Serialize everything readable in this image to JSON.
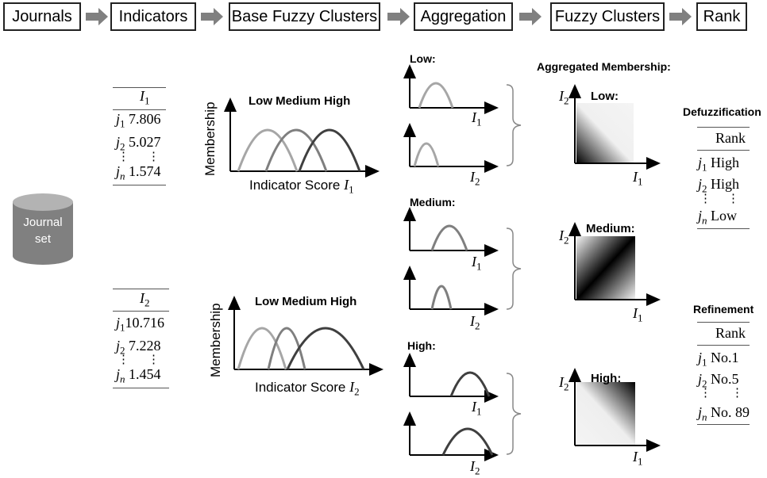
{
  "pipeline": {
    "steps": [
      "Journals",
      "Indicators",
      "Base Fuzzy Clusters",
      "Aggregation",
      "Fuzzy Clusters",
      "Rank"
    ]
  },
  "journal_set": {
    "label": "Journal\nset"
  },
  "indicator_tables": [
    {
      "header": "I",
      "header_sub": "1",
      "rows": [
        {
          "j": "j",
          "sub": "1",
          "val": "7.806"
        },
        {
          "j": "j",
          "sub": "2",
          "val": "5.027"
        },
        {
          "j": "j",
          "sub": "n",
          "val": "1.574"
        }
      ]
    },
    {
      "header": "I",
      "header_sub": "2",
      "rows": [
        {
          "j": "j",
          "sub": "1",
          "val": "10.716"
        },
        {
          "j": "j",
          "sub": "2",
          "val": "7.228"
        },
        {
          "j": "j",
          "sub": "n",
          "val": "1.454"
        }
      ]
    }
  ],
  "base_clusters": [
    {
      "ylabel": "Membership",
      "legend": "Low Medium High",
      "xlabel": "Indicator Score",
      "xvar": "I",
      "xsub": "1"
    },
    {
      "ylabel": "Membership",
      "legend": "Low Medium High",
      "xlabel": "Indicator Score",
      "xvar": "I",
      "xsub": "2"
    }
  ],
  "aggregation": {
    "groups": [
      {
        "label": "Low:"
      },
      {
        "label": "Medium:"
      },
      {
        "label": "High:"
      }
    ],
    "axis1": {
      "var": "I",
      "sub": "1"
    },
    "axis2": {
      "var": "I",
      "sub": "2"
    }
  },
  "fuzzy_clusters": {
    "title": "Aggregated Membership:",
    "maps": [
      {
        "label": "Low:"
      },
      {
        "label": "Medium:"
      },
      {
        "label": "High:"
      }
    ],
    "xvar": "I",
    "xsub": "1",
    "yvar": "I",
    "ysub": "2"
  },
  "defuzzification": {
    "title": "Defuzzification",
    "header": "Rank",
    "rows": [
      {
        "j": "j",
        "sub": "1",
        "val": "High"
      },
      {
        "j": "j",
        "sub": "2",
        "val": "High"
      },
      {
        "j": "j",
        "sub": "n",
        "val": "Low"
      }
    ]
  },
  "refinement": {
    "title": "Refinement",
    "header": "Rank",
    "rows": [
      {
        "j": "j",
        "sub": "1",
        "val": "No.1"
      },
      {
        "j": "j",
        "sub": "2",
        "val": "No.5"
      },
      {
        "j": "j",
        "sub": "n",
        "val": "No. 89"
      }
    ]
  },
  "ellipsis": "⋮",
  "colors": {
    "low": "#a6a6a6",
    "medium": "#7f7f7f",
    "high": "#3f3f3f",
    "arrow": "#808080",
    "cylinder": "#808080"
  }
}
